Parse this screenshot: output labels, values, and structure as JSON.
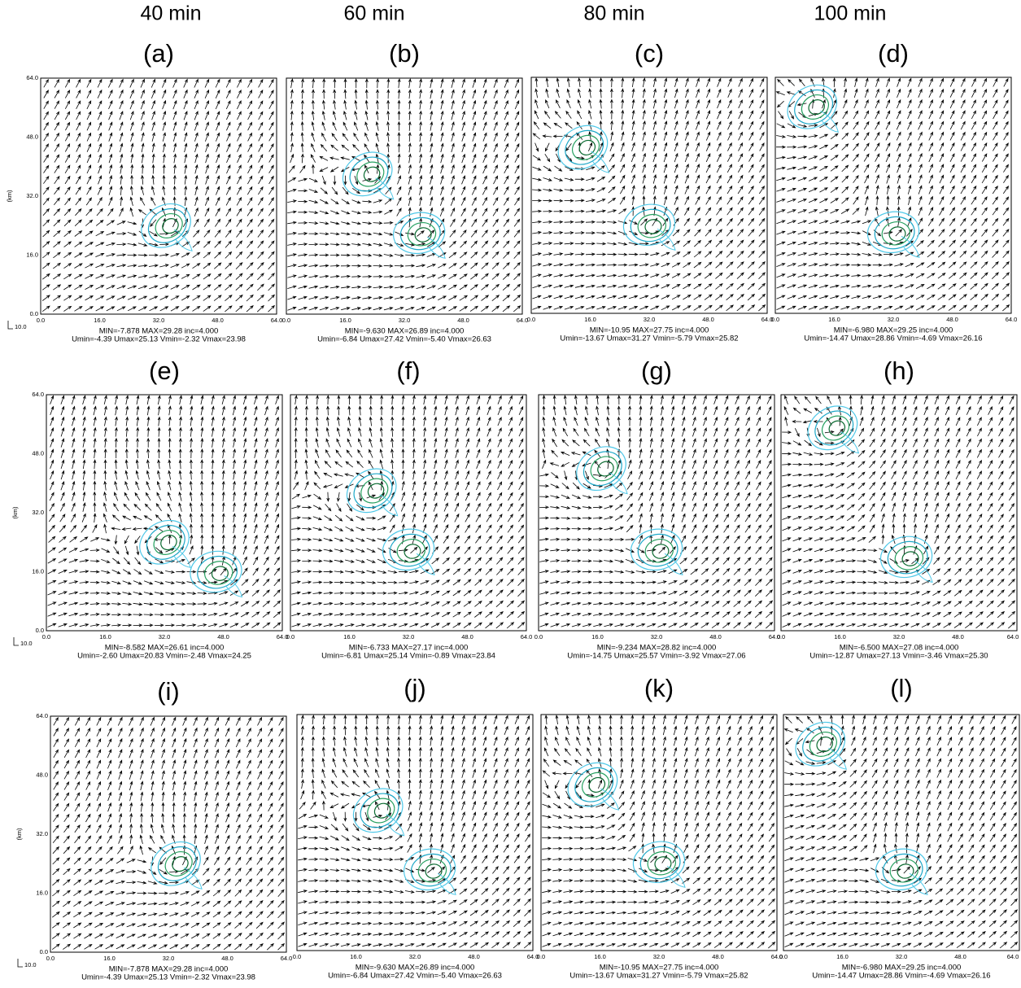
{
  "column_headers": [
    "40 min",
    "60 min",
    "80 min",
    "100 min"
  ],
  "axis": {
    "ticks": [
      "0.0",
      "16.0",
      "32.0",
      "48.0",
      "64.0"
    ],
    "unit": "(km)",
    "vector_scale": "10.0"
  },
  "panels": [
    {
      "label": "(a)",
      "min_max": "MIN=-7.878 MAX=29.28 inc=4.000",
      "u_v": "Umin=-4.39 Umax=25.13 Vmin=-2.32 Vmax=23.98"
    },
    {
      "label": "(b)",
      "min_max": "MIN=-9.630 MAX=26.89 inc=4.000",
      "u_v": "Umin=-6.84 Umax=27.42 Vmin=-5.40 Vmax=26.63"
    },
    {
      "label": "(c)",
      "min_max": "MIN=-10.95 MAX=27.75 inc=4.000",
      "u_v": "Umin=-13.67 Umax=31.27 Vmin=-5.79 Vmax=25.82"
    },
    {
      "label": "(d)",
      "min_max": "MIN=-6.980 MAX=29.25 inc=4.000",
      "u_v": "Umin=-14.47 Umax=28.86 Vmin=-4.69 Vmax=26.16"
    },
    {
      "label": "(e)",
      "min_max": "MIN=-8.582 MAX=26.61 inc=4.000",
      "u_v": "Umin=-2.60 Umax=20.83 Vmin=-2.48 Vmax=24.25"
    },
    {
      "label": "(f)",
      "min_max": "MIN=-6.733 MAX=27.17 inc=4.000",
      "u_v": "Umin=-6.81 Umax=25.14 Vmin=-0.89 Vmax=23.84"
    },
    {
      "label": "(g)",
      "min_max": "MIN=-9.234 MAX=28.82 inc=4.000",
      "u_v": "Umin=-14.75 Umax=25.57 Vmin=-3.92 Vmax=27.06"
    },
    {
      "label": "(h)",
      "min_max": "MIN=-6.500 MAX=27.08 inc=4.000",
      "u_v": "Umin=-12.87 Umax=27.13 Vmin=-3.46 Vmax=25.30"
    },
    {
      "label": "(i)",
      "min_max": "MIN=-7.878 MAX=29.28 inc=4.000",
      "u_v": "Umin=-4.39 Umax=25.13 Vmin=-2.32 Vmax=23.98"
    },
    {
      "label": "(j)",
      "min_max": "MIN=-9.630 MAX=26.89 inc=4.000",
      "u_v": "Umin=-6.84 Umax=27.42 Vmin=-5.40 Vmax=26.63"
    },
    {
      "label": "(k)",
      "min_max": "MIN=-10.95 MAX=27.75 inc=4.000",
      "u_v": "Umin=-13.67 Umax=31.27 Vmin=-5.79 Vmax=25.82"
    },
    {
      "label": "(l)",
      "min_max": "MIN=-6.980 MAX=29.25 inc=4.000",
      "u_v": "Umin=-14.47 Umax=28.86 Vmin=-4.69 Vmax=26.16"
    }
  ]
}
